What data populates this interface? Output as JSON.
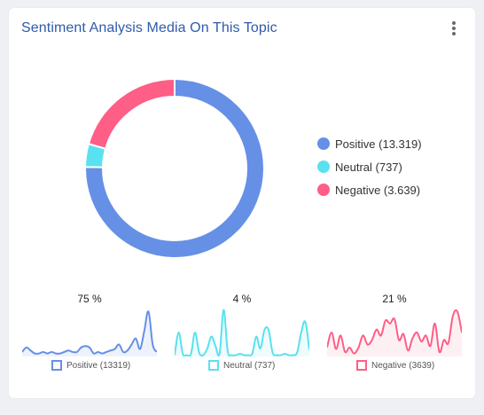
{
  "title": "Sentiment Analysis Media On This Topic",
  "menu_icon": "more-vertical-icon",
  "chart_data": [
    {
      "type": "pie",
      "categories": [
        "Positive",
        "Neutral",
        "Negative"
      ],
      "values": [
        13319,
        737,
        3639
      ],
      "colors": [
        "#6690e6",
        "#59e1f0",
        "#ff5e86"
      ],
      "legend": [
        "Positive (13.319)",
        "Neutral (737)",
        "Negative (3.639)"
      ],
      "legend_position": "right"
    },
    {
      "type": "area",
      "name": "Positive",
      "percent_label": "75 %",
      "legend": "Positive (13319)",
      "color": "#6690e6",
      "fill": "#eef2fc",
      "values": [
        3,
        6,
        4,
        2,
        2,
        3,
        2,
        3,
        2,
        2,
        3,
        4,
        3,
        3,
        6,
        7,
        6,
        2,
        3,
        2,
        3,
        4,
        5,
        8,
        3,
        4,
        8,
        12,
        5,
        17,
        30,
        8,
        3
      ],
      "ylim": [
        0,
        32
      ]
    },
    {
      "type": "area",
      "name": "Neutral",
      "percent_label": "4 %",
      "legend": "Neutral (737)",
      "color": "#59e1f0",
      "fill": "#eefcfd",
      "values": [
        1,
        18,
        2,
        1,
        2,
        18,
        3,
        1,
        6,
        15,
        8,
        2,
        35,
        4,
        1,
        1,
        2,
        1,
        1,
        2,
        15,
        6,
        20,
        20,
        3,
        1,
        1,
        2,
        1,
        1,
        3,
        18,
        26,
        5
      ],
      "ylim": [
        0,
        36
      ]
    },
    {
      "type": "area",
      "name": "Negative",
      "percent_label": "21 %",
      "legend": "Negative (3639)",
      "color": "#ff5e86",
      "fill": "#fdf0f3",
      "values": [
        6,
        16,
        5,
        14,
        3,
        6,
        2,
        6,
        14,
        8,
        11,
        18,
        14,
        24,
        22,
        25,
        11,
        15,
        4,
        12,
        16,
        10,
        14,
        7,
        22,
        3,
        11,
        9,
        27,
        30,
        16
      ],
      "ylim": [
        0,
        32
      ]
    }
  ]
}
